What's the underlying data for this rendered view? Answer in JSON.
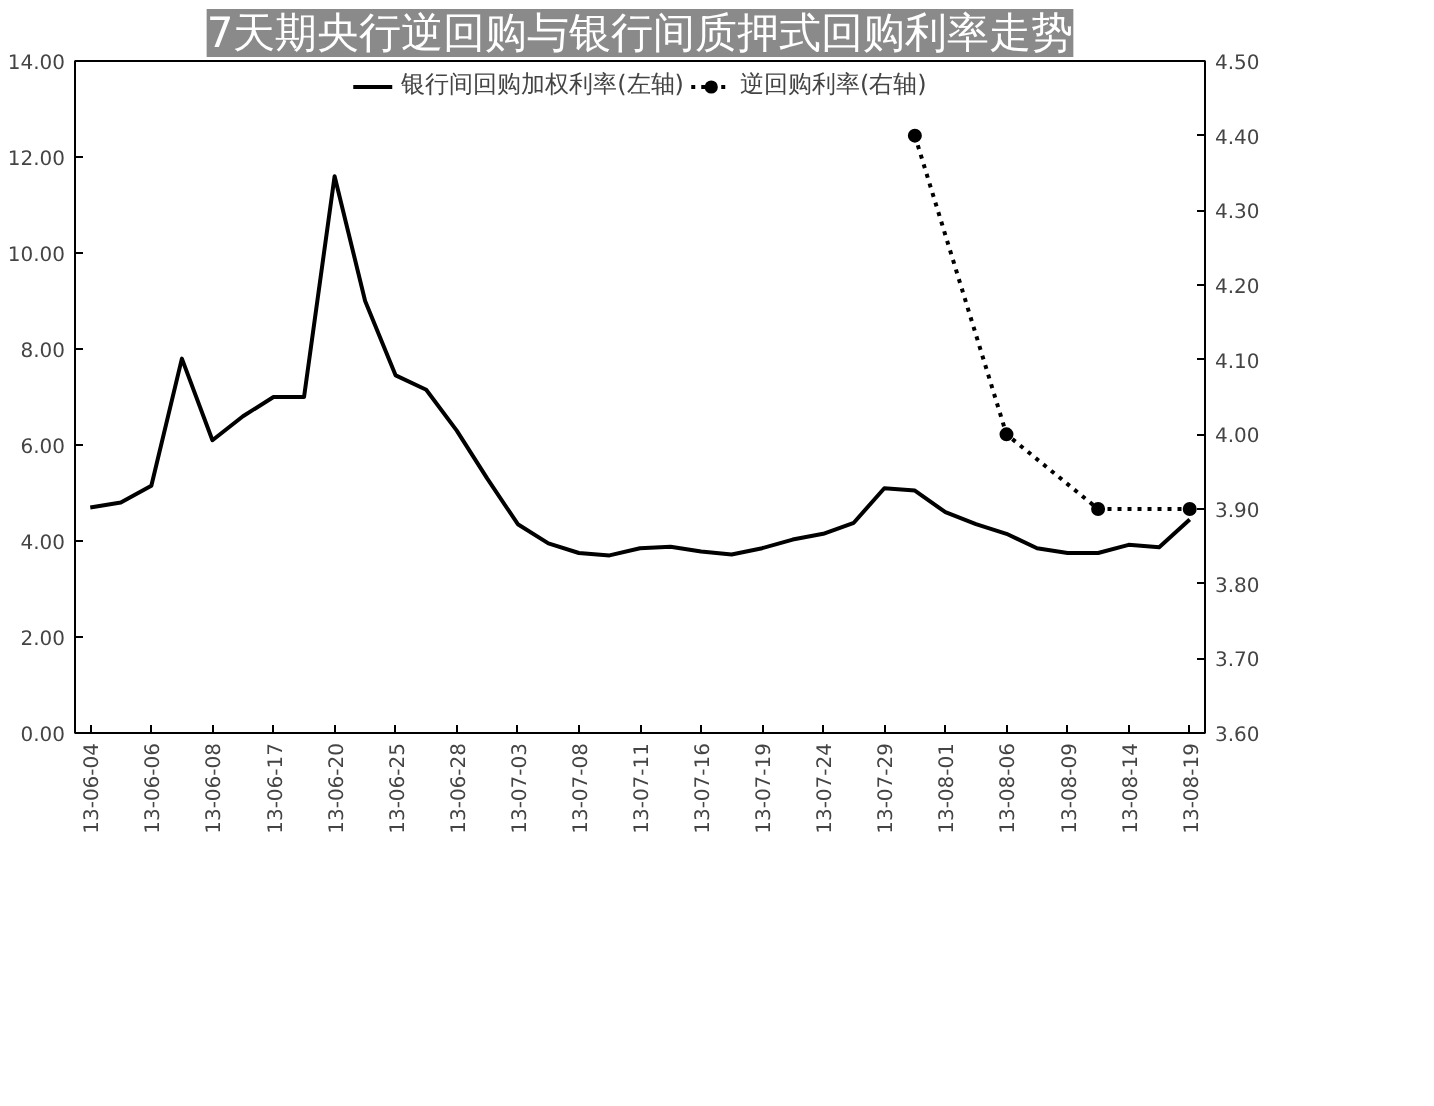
{
  "chart_data": {
    "type": "line",
    "title": "7天期央行逆回购与银行间质押式回购利率走势",
    "categories": [
      "13-06-04",
      null,
      "13-06-06",
      null,
      "13-06-08",
      null,
      "13-06-17",
      null,
      "13-06-20",
      null,
      "13-06-25",
      null,
      "13-06-28",
      null,
      "13-07-03",
      null,
      "13-07-08",
      null,
      "13-07-11",
      null,
      "13-07-16",
      null,
      "13-07-19",
      null,
      "13-07-24",
      null,
      "13-07-29",
      null,
      "13-08-01",
      null,
      "13-08-06",
      null,
      "13-08-09",
      null,
      "13-08-14",
      null,
      "13-08-19"
    ],
    "series": [
      {
        "name": "银行间回购加权利率(左轴)",
        "color": "#000000",
        "marker": "none",
        "line_style": "solid",
        "values": [
          4.7,
          4.8,
          5.15,
          7.8,
          6.1,
          6.6,
          7.0,
          7.0,
          11.6,
          9.0,
          7.45,
          7.15,
          6.3,
          5.3,
          4.35,
          3.95,
          3.75,
          3.7,
          3.85,
          3.88,
          3.78,
          3.72,
          3.85,
          4.03,
          4.15,
          4.38,
          5.1,
          5.05,
          4.6,
          4.35,
          4.15,
          3.85,
          3.75,
          3.75,
          3.92,
          3.87,
          4.45
        ]
      },
      {
        "name": "逆回购利率(右轴)",
        "color": "#000000",
        "axis": "y2",
        "marker": "circle",
        "line_style": "dotted",
        "values": [
          null,
          null,
          null,
          null,
          null,
          null,
          null,
          null,
          null,
          null,
          null,
          null,
          null,
          null,
          null,
          null,
          null,
          null,
          null,
          null,
          null,
          null,
          null,
          null,
          null,
          null,
          null,
          4.4,
          null,
          null,
          4.0,
          null,
          null,
          3.9,
          null,
          null,
          3.9
        ]
      }
    ],
    "ylim": [
      0,
      14
    ],
    "yticks": [
      {
        "value": 0,
        "label": "0.00"
      },
      {
        "value": 2,
        "label": "2.00"
      },
      {
        "value": 4,
        "label": "4.00"
      },
      {
        "value": 6,
        "label": "6.00"
      },
      {
        "value": 8,
        "label": "8.00"
      },
      {
        "value": 10,
        "label": "10.00"
      },
      {
        "value": 12,
        "label": "12.00"
      },
      {
        "value": 14,
        "label": "14.00"
      }
    ],
    "y2lim": [
      3.6,
      4.5
    ],
    "y2ticks": [
      {
        "value": 3.6,
        "label": "3.60"
      },
      {
        "value": 3.7,
        "label": "3.70"
      },
      {
        "value": 3.8,
        "label": "3.80"
      },
      {
        "value": 3.9,
        "label": "3.90"
      },
      {
        "value": 4.0,
        "label": "4.00"
      },
      {
        "value": 4.1,
        "label": "4.10"
      },
      {
        "value": 4.2,
        "label": "4.20"
      },
      {
        "value": 4.3,
        "label": "4.30"
      },
      {
        "value": 4.4,
        "label": "4.40"
      },
      {
        "value": 4.5,
        "label": "4.50"
      }
    ],
    "grid": false,
    "legend": "top"
  }
}
